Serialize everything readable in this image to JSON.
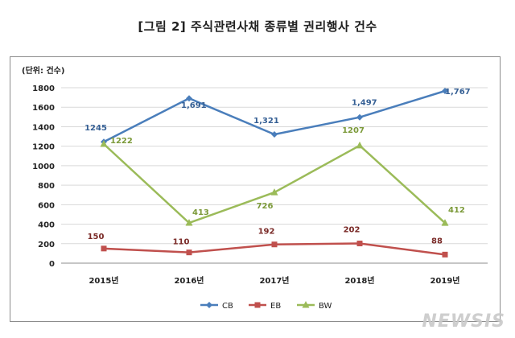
{
  "chart_data": {
    "type": "line",
    "title": "[그림 2]  주식관련사채 종류별 권리행사 건수",
    "unit_label": "(단위: 건수)",
    "categories": [
      "2015년",
      "2016년",
      "2017년",
      "2018년",
      "2019년"
    ],
    "ylim": [
      0,
      1800
    ],
    "yticks": [
      0,
      200,
      400,
      600,
      800,
      1000,
      1200,
      1400,
      1600,
      1800
    ],
    "grid": true,
    "legend_position": "bottom",
    "series": [
      {
        "name": "CB",
        "values": [
          1245,
          1691,
          1321,
          1497,
          1767
        ],
        "labels": [
          "1245",
          "1,691",
          "1,321",
          "1,497",
          "1,767"
        ],
        "color": "#4a7ebb",
        "marker": "diamond"
      },
      {
        "name": "EB",
        "values": [
          150,
          110,
          192,
          202,
          88
        ],
        "labels": [
          "150",
          "110",
          "192",
          "202",
          "88"
        ],
        "color": "#c0504d",
        "marker": "square"
      },
      {
        "name": "BW",
        "values": [
          1222,
          413,
          726,
          1207,
          412
        ],
        "labels": [
          "1222",
          "413",
          "726",
          "1207",
          "412"
        ],
        "color": "#9bbb59",
        "marker": "triangle"
      }
    ]
  },
  "watermark": "NEWSIS"
}
